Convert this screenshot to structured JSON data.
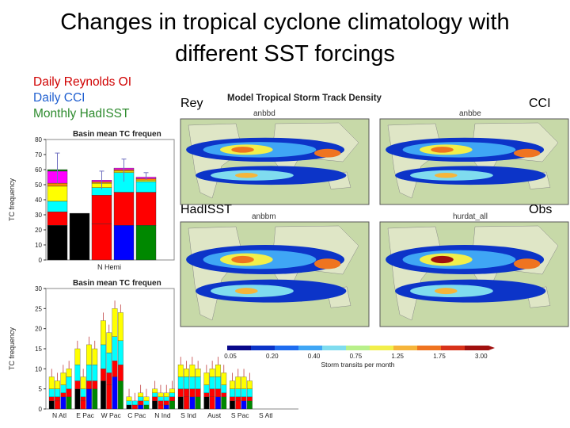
{
  "title_line1": "Changes in tropical cyclone climatology with",
  "title_line2": "different SST forcings",
  "legend": [
    {
      "label": "Daily Reynolds OI",
      "color": "#d00000"
    },
    {
      "label": "Daily CCI",
      "color": "#1f5fd0"
    },
    {
      "label": "Monthly HadISST",
      "color": "#2e8b2e"
    }
  ],
  "panel_labels": {
    "rey": "Rey",
    "cci": "CCI",
    "hadisst": "HadISST",
    "obs": "Obs"
  },
  "map_title": "Model Tropical Storm Track Density",
  "map_subtitles": {
    "top_left": "anbbd",
    "top_right": "anbbe",
    "bottom_left": "anbbm",
    "bottom_right": "hurdat_all"
  },
  "colorbar": {
    "ticks": [
      "0.05",
      "0.20",
      "0.40",
      "0.75",
      "1.25",
      "1.75",
      "3.00"
    ],
    "label": "Storm transits per month",
    "colors": [
      "#08088a",
      "#0c34c8",
      "#1e6cf0",
      "#3fa6f5",
      "#7fdcef",
      "#b8f08a",
      "#f2ef4a",
      "#f6b53a",
      "#ef7420",
      "#d8321a",
      "#a0100e"
    ]
  },
  "chart_data": [
    {
      "type": "bar",
      "title": "Basin mean TC frequen",
      "ylabel": "TC frequency",
      "ylim": [
        0,
        80
      ],
      "yticks": [
        0,
        10,
        20,
        30,
        40,
        50,
        60,
        70,
        80
      ],
      "categories": [
        "N Hemi"
      ],
      "bars": [
        {
          "segments": [
            23,
            9,
            7,
            10,
            2,
            8,
            1
          ],
          "error": [
            51,
            71
          ]
        },
        {
          "segments": [
            31
          ],
          "error": null
        },
        {
          "segments": [
            24,
            19,
            5,
            3,
            1,
            1
          ],
          "error": [
            47,
            59
          ]
        },
        {
          "segments": [
            23,
            22,
            13,
            1,
            1,
            1
          ],
          "error": [
            52,
            67
          ]
        },
        {
          "segments": [
            23,
            22,
            7,
            1,
            1,
            1
          ],
          "error": [
            53,
            58
          ]
        }
      ]
    },
    {
      "type": "bar",
      "title": "Basin mean TC frequen",
      "ylabel": "TC frequency",
      "ylim": [
        0,
        30
      ],
      "yticks": [
        0,
        5,
        10,
        15,
        20,
        25,
        30
      ],
      "categories": [
        "N Atl",
        "E Pac",
        "W Pac",
        "C Pac",
        "N Ind",
        "S Ind",
        "Aust",
        "S Pac",
        "S Atl"
      ],
      "totals": [
        [
          8,
          7,
          9,
          10
        ],
        [
          15,
          8,
          16,
          15
        ],
        [
          22,
          19,
          25,
          24
        ],
        [
          3,
          2,
          4,
          3
        ],
        [
          5,
          4,
          4,
          5
        ],
        [
          11,
          10,
          11,
          10
        ],
        [
          9,
          10,
          11,
          9
        ],
        [
          7,
          8,
          8,
          7
        ],
        [
          0,
          0,
          0,
          0
        ]
      ]
    }
  ]
}
